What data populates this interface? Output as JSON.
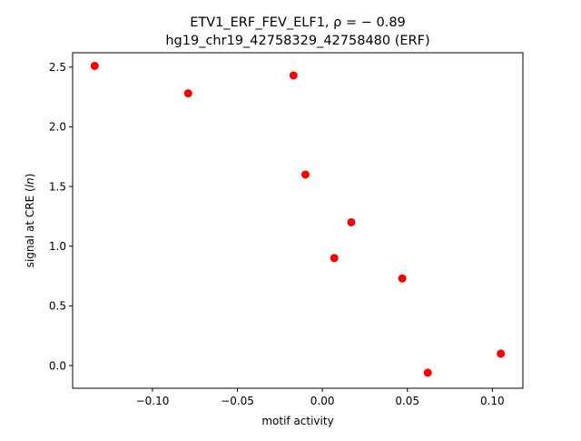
{
  "chart_data": {
    "type": "scatter",
    "title_line1": "ETV1_ERF_FEV_ELF1, ρ = − 0.89",
    "title_line2": "hg19_chr19_42758329_42758480 (ERF)",
    "xlabel": "motif activity",
    "ylabel": "signal at CRE (ln)",
    "xlim": [
      -0.147,
      0.118
    ],
    "ylim": [
      -0.19,
      2.62
    ],
    "xticks": [
      {
        "value": -0.1,
        "label": "−0.10"
      },
      {
        "value": -0.05,
        "label": "−0.05"
      },
      {
        "value": 0.0,
        "label": "0.00"
      },
      {
        "value": 0.05,
        "label": "0.05"
      },
      {
        "value": 0.1,
        "label": "0.10"
      }
    ],
    "yticks": [
      {
        "value": 0.0,
        "label": "0.0"
      },
      {
        "value": 0.5,
        "label": "0.5"
      },
      {
        "value": 1.0,
        "label": "1.0"
      },
      {
        "value": 1.5,
        "label": "1.5"
      },
      {
        "value": 2.0,
        "label": "2.0"
      },
      {
        "value": 2.5,
        "label": "2.5"
      }
    ],
    "grid": false,
    "legend": false,
    "marker_color": "#ff0000",
    "points": [
      {
        "x": -0.134,
        "y": 2.51
      },
      {
        "x": -0.079,
        "y": 2.28
      },
      {
        "x": -0.017,
        "y": 2.43
      },
      {
        "x": -0.01,
        "y": 1.6
      },
      {
        "x": 0.017,
        "y": 1.2
      },
      {
        "x": 0.007,
        "y": 0.9
      },
      {
        "x": 0.047,
        "y": 0.73
      },
      {
        "x": 0.062,
        "y": -0.06
      },
      {
        "x": 0.105,
        "y": 0.1
      }
    ]
  }
}
